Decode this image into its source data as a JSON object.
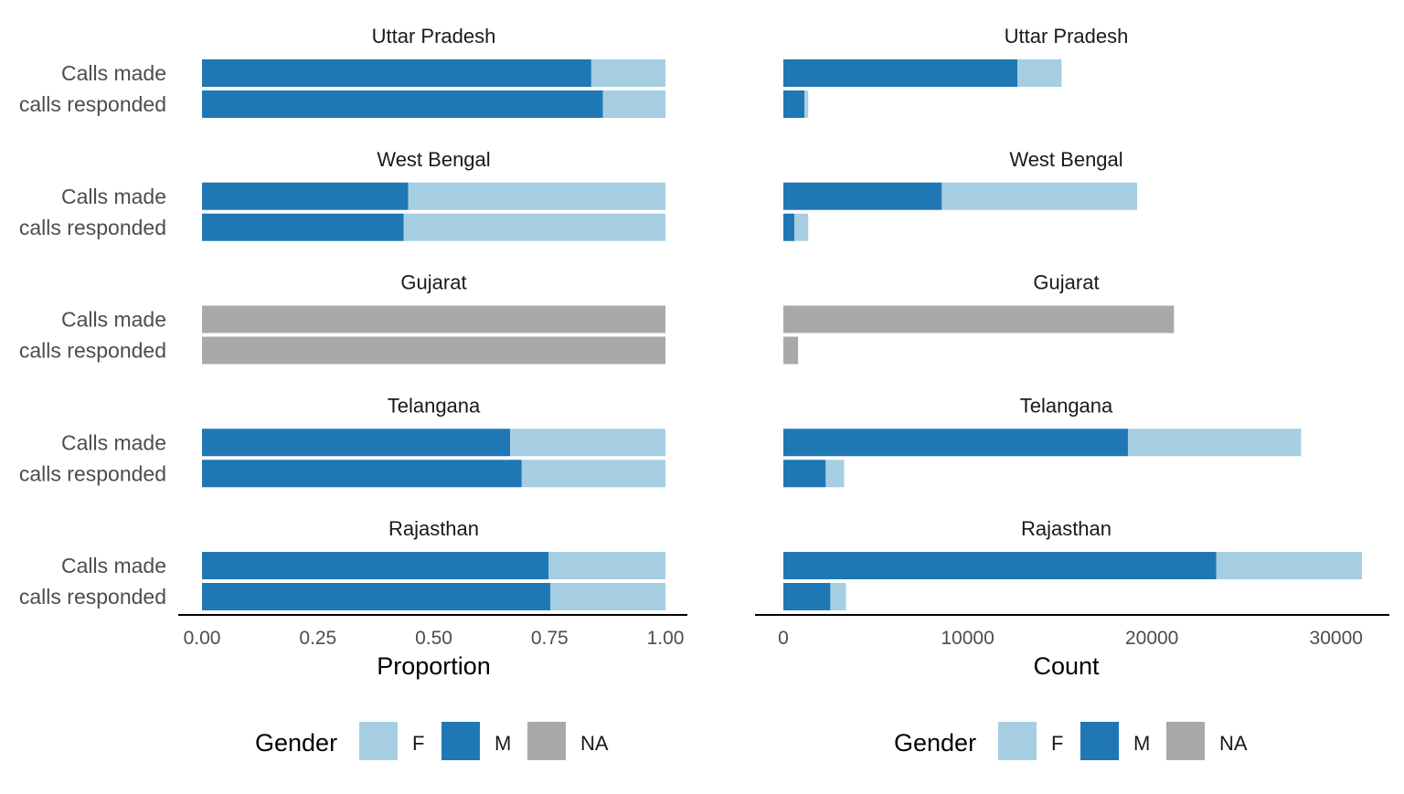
{
  "colors": {
    "F": "#a6cee3",
    "M": "#1f78b4",
    "NA": "#a9a9a9"
  },
  "legend": {
    "title": "Gender",
    "entries": [
      {
        "key": "F",
        "label": "F"
      },
      {
        "key": "M",
        "label": "M"
      },
      {
        "key": "NA",
        "label": "NA"
      }
    ]
  },
  "chart_data": [
    {
      "type": "bar",
      "orientation": "horizontal",
      "stacked": true,
      "xlabel": "Proportion",
      "xlim": [
        0,
        1
      ],
      "xticks": [
        0,
        0.25,
        0.5,
        0.75,
        1
      ],
      "xtick_labels": [
        "0.00",
        "0.25",
        "0.50",
        "0.75",
        "1.00"
      ],
      "categories": [
        "Calls made",
        "calls responded"
      ],
      "facets": [
        {
          "title": "Uttar Pradesh",
          "bars": [
            {
              "M": 0.84,
              "F": 0.16
            },
            {
              "M": 0.865,
              "F": 0.135
            }
          ]
        },
        {
          "title": "West Bengal",
          "bars": [
            {
              "M": 0.445,
              "F": 0.555
            },
            {
              "M": 0.435,
              "F": 0.565
            }
          ]
        },
        {
          "title": "Gujarat",
          "bars": [
            {
              "NA": 1.0
            },
            {
              "NA": 1.0
            }
          ]
        },
        {
          "title": "Telangana",
          "bars": [
            {
              "M": 0.665,
              "F": 0.335
            },
            {
              "M": 0.69,
              "F": 0.31
            }
          ]
        },
        {
          "title": "Rajasthan",
          "bars": [
            {
              "M": 0.748,
              "F": 0.252
            },
            {
              "M": 0.752,
              "F": 0.248
            }
          ]
        }
      ],
      "legend_position": "bottom"
    },
    {
      "type": "bar",
      "orientation": "horizontal",
      "stacked": true,
      "xlabel": "Count",
      "xlim": [
        0,
        31500
      ],
      "xticks": [
        0,
        10000,
        20000,
        30000
      ],
      "xtick_labels": [
        "0",
        "10000",
        "20000",
        "30000"
      ],
      "categories": [
        "Calls made",
        "calls responded"
      ],
      "facets": [
        {
          "title": "Uttar Pradesh",
          "bars": [
            {
              "M": 12700,
              "F": 2400
            },
            {
              "M": 1150,
              "F": 200
            }
          ]
        },
        {
          "title": "West Bengal",
          "bars": [
            {
              "M": 8600,
              "F": 10600
            },
            {
              "M": 600,
              "F": 750
            }
          ]
        },
        {
          "title": "Gujarat",
          "bars": [
            {
              "NA": 21200
            },
            {
              "NA": 800
            }
          ]
        },
        {
          "title": "Telangana",
          "bars": [
            {
              "M": 18700,
              "F": 9400
            },
            {
              "M": 2300,
              "F": 1000
            }
          ]
        },
        {
          "title": "Rajasthan",
          "bars": [
            {
              "M": 23500,
              "F": 7900
            },
            {
              "M": 2550,
              "F": 850
            }
          ]
        }
      ],
      "legend_position": "bottom"
    }
  ]
}
